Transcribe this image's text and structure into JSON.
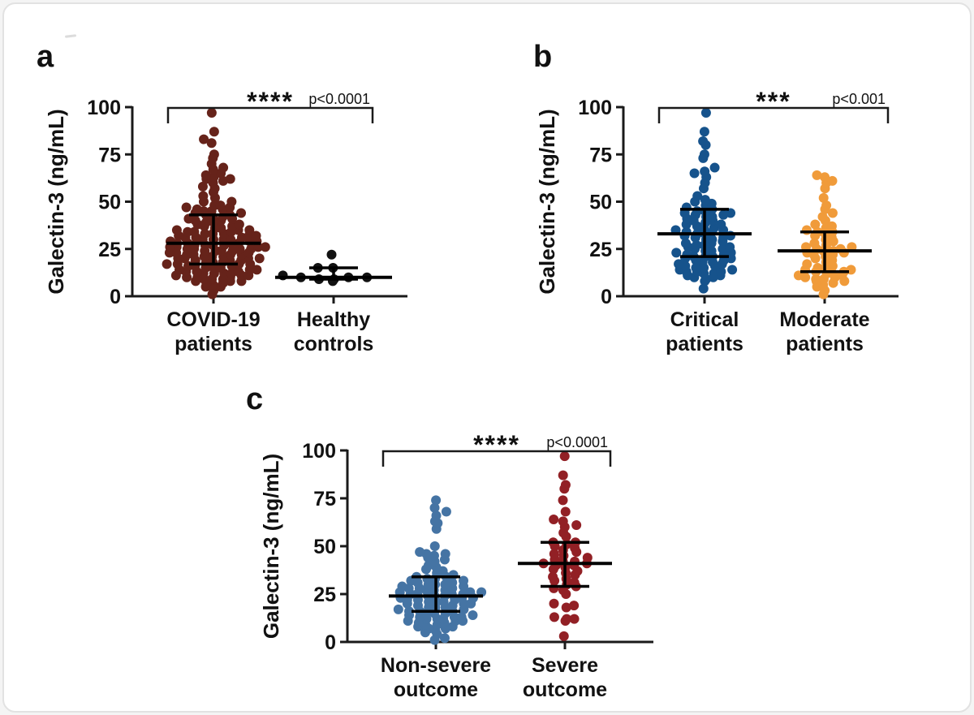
{
  "figure": {
    "background": "#ffffff",
    "axis_color": "#1a1a1a",
    "error_bar_color": "#000000"
  },
  "chart_data": [
    {
      "panel": "a",
      "type": "scatter",
      "title": "",
      "ylabel": "Galectin-3 (ng/mL)",
      "xlabel": "",
      "ylim": [
        0,
        100
      ],
      "yticks": [
        0,
        25,
        50,
        75,
        100
      ],
      "significance": {
        "stars": "****",
        "p_label": "p<0.0001"
      },
      "groups": [
        {
          "label_line1": "COVID-19",
          "label_line2": "patients",
          "color": "#66231A",
          "median": 28,
          "q1": 17,
          "q3": 43,
          "values": [
            1,
            3,
            5,
            5,
            6,
            7,
            7,
            8,
            8,
            8,
            9,
            9,
            9,
            10,
            10,
            10,
            11,
            11,
            11,
            12,
            12,
            12,
            12,
            13,
            13,
            13,
            14,
            14,
            14,
            15,
            15,
            15,
            16,
            16,
            16,
            17,
            17,
            17,
            17,
            18,
            18,
            18,
            19,
            19,
            19,
            20,
            20,
            20,
            20,
            21,
            21,
            21,
            22,
            22,
            22,
            22,
            23,
            23,
            23,
            24,
            24,
            24,
            24,
            25,
            25,
            25,
            25,
            26,
            26,
            26,
            26,
            27,
            27,
            27,
            27,
            28,
            28,
            28,
            28,
            29,
            29,
            29,
            30,
            30,
            30,
            30,
            31,
            31,
            31,
            32,
            32,
            32,
            33,
            33,
            33,
            34,
            34,
            34,
            35,
            35,
            35,
            36,
            36,
            37,
            37,
            38,
            38,
            39,
            39,
            40,
            40,
            41,
            41,
            42,
            42,
            43,
            43,
            44,
            44,
            45,
            45,
            46,
            46,
            47,
            47,
            48,
            48,
            50,
            50,
            52,
            53,
            55,
            57,
            58,
            60,
            61,
            62,
            62,
            63,
            64,
            65,
            67,
            68,
            70,
            73,
            75,
            81,
            83,
            87,
            97
          ]
        },
        {
          "label_line1": "Healthy",
          "label_line2": "controls",
          "color": "#121212",
          "median": 10,
          "q1": 9,
          "q3": 15,
          "values": [
            8,
            9,
            9,
            10,
            10,
            10,
            11,
            15,
            15,
            22
          ]
        }
      ]
    },
    {
      "panel": "b",
      "type": "scatter",
      "title": "",
      "ylabel": "Galectin-3 (ng/mL)",
      "xlabel": "",
      "ylim": [
        0,
        100
      ],
      "yticks": [
        0,
        25,
        50,
        75,
        100
      ],
      "significance": {
        "stars": "***",
        "p_label": "p<0.001"
      },
      "groups": [
        {
          "label_line1": "Critical",
          "label_line2": "patients",
          "color": "#16538C",
          "median": 33,
          "q1": 21,
          "q3": 46,
          "values": [
            4,
            8,
            9,
            10,
            10,
            11,
            11,
            12,
            12,
            13,
            13,
            13,
            14,
            14,
            15,
            15,
            16,
            16,
            17,
            17,
            18,
            18,
            19,
            19,
            20,
            20,
            21,
            21,
            21,
            22,
            22,
            23,
            23,
            24,
            24,
            25,
            25,
            26,
            26,
            27,
            27,
            28,
            28,
            29,
            30,
            30,
            31,
            31,
            32,
            32,
            33,
            33,
            34,
            34,
            35,
            35,
            36,
            36,
            37,
            38,
            38,
            39,
            40,
            40,
            41,
            42,
            42,
            43,
            43,
            44,
            44,
            45,
            45,
            46,
            47,
            48,
            49,
            50,
            51,
            53,
            57,
            60,
            63,
            65,
            66,
            68,
            73,
            75,
            80,
            82,
            87,
            97
          ]
        },
        {
          "label_line1": "Moderate",
          "label_line2": "patients",
          "color": "#F09B3A",
          "median": 24,
          "q1": 13,
          "q3": 34,
          "values": [
            1,
            3,
            5,
            6,
            7,
            8,
            8,
            9,
            9,
            10,
            10,
            11,
            11,
            12,
            12,
            13,
            13,
            14,
            14,
            15,
            15,
            16,
            17,
            18,
            19,
            20,
            21,
            22,
            22,
            23,
            23,
            24,
            24,
            25,
            25,
            26,
            26,
            27,
            28,
            29,
            30,
            31,
            32,
            33,
            34,
            34,
            35,
            36,
            37,
            38,
            40,
            42,
            44,
            46,
            48,
            52,
            57,
            60,
            61,
            63,
            64
          ]
        }
      ]
    },
    {
      "panel": "c",
      "type": "scatter",
      "title": "",
      "ylabel": "Galectin-3 (ng/mL)",
      "xlabel": "",
      "ylim": [
        0,
        100
      ],
      "yticks": [
        0,
        25,
        50,
        75,
        100
      ],
      "significance": {
        "stars": "****",
        "p_label": "p<0.0001"
      },
      "groups": [
        {
          "label_line1": "Non-severe",
          "label_line2": "outcome",
          "color": "#4574A4",
          "median": 24,
          "q1": 16,
          "q3": 34,
          "values": [
            1,
            2,
            4,
            5,
            6,
            7,
            7,
            8,
            8,
            9,
            9,
            10,
            10,
            11,
            11,
            11,
            12,
            12,
            12,
            13,
            13,
            13,
            14,
            14,
            15,
            15,
            15,
            16,
            16,
            16,
            17,
            17,
            18,
            18,
            18,
            19,
            19,
            20,
            20,
            20,
            21,
            21,
            21,
            22,
            22,
            22,
            23,
            23,
            23,
            24,
            24,
            24,
            25,
            25,
            25,
            25,
            26,
            26,
            26,
            27,
            27,
            27,
            28,
            28,
            28,
            29,
            29,
            30,
            30,
            30,
            31,
            31,
            32,
            32,
            33,
            33,
            34,
            34,
            35,
            36,
            37,
            38,
            39,
            40,
            42,
            43,
            44,
            45,
            46,
            46,
            47,
            50,
            59,
            62,
            63,
            66,
            68,
            70,
            74
          ]
        },
        {
          "label_line1": "Severe",
          "label_line2": "outcome",
          "color": "#922025",
          "median": 41,
          "q1": 29,
          "q3": 52,
          "values": [
            3,
            11,
            12,
            12,
            13,
            18,
            19,
            20,
            25,
            27,
            28,
            29,
            30,
            31,
            32,
            33,
            34,
            35,
            36,
            37,
            38,
            39,
            40,
            40,
            41,
            41,
            42,
            42,
            43,
            44,
            45,
            46,
            47,
            48,
            49,
            50,
            51,
            52,
            52,
            55,
            57,
            60,
            61,
            63,
            64,
            68,
            74,
            80,
            82,
            87,
            97
          ]
        }
      ]
    }
  ]
}
